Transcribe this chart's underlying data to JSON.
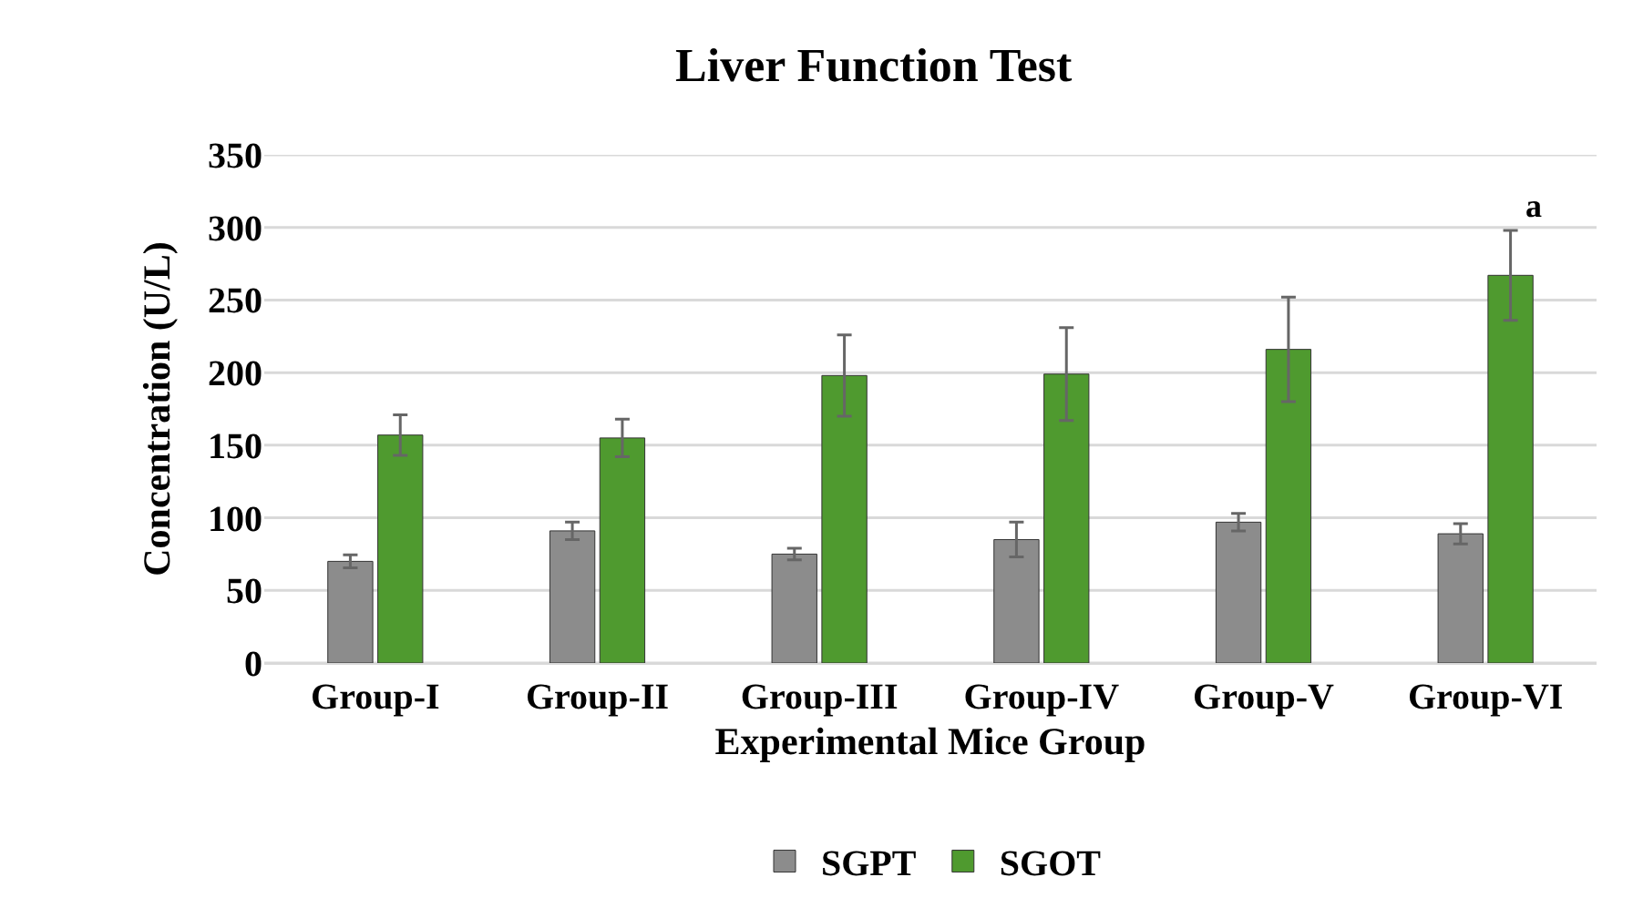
{
  "chart_data": {
    "type": "bar",
    "title": "Liver Function Test",
    "xlabel": "Experimental Mice Group",
    "ylabel": "Concentration (U/L)",
    "categories": [
      "Group-I",
      "Group-II",
      "Group-III",
      "Group-IV",
      "Group-V",
      "Group-VI"
    ],
    "series": [
      {
        "name": "SGPT",
        "color": "#8c8c8c",
        "values": [
          70,
          91,
          75,
          85,
          97,
          89
        ],
        "errors": [
          4.5,
          6,
          4,
          12,
          6,
          7
        ]
      },
      {
        "name": "SGOT",
        "color": "#4f9a2f",
        "values": [
          157,
          155,
          198,
          199,
          216,
          267
        ],
        "errors": [
          14,
          13,
          28,
          32,
          36,
          31
        ]
      }
    ],
    "ylim": [
      0,
      350
    ],
    "yticks": [
      0,
      50,
      100,
      150,
      200,
      250,
      300,
      350
    ],
    "grid": "y",
    "legend": "bottom",
    "annotations": [
      "a"
    ]
  }
}
